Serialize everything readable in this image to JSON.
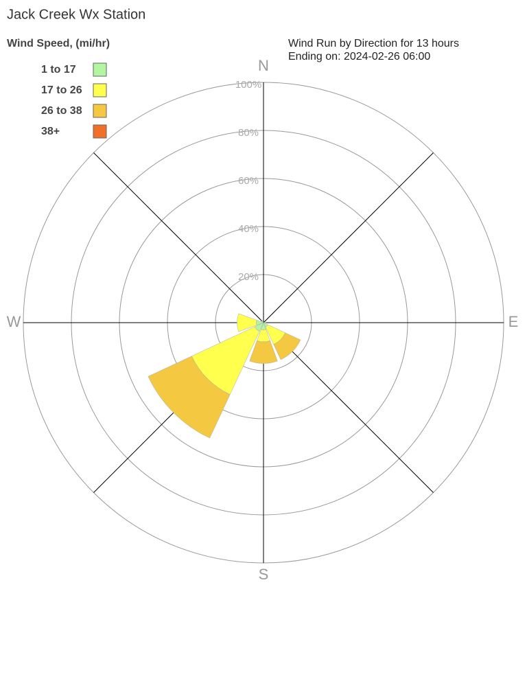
{
  "chart_data": {
    "type": "windrose",
    "title": "Jack Creek Wx Station",
    "legend_title": "Wind Speed, (mi/hr)",
    "subtitle": [
      "Wind Run by Direction for 13 hours",
      "Ending on: 2024-02-26 06:00"
    ],
    "compass_labels": [
      "N",
      "E",
      "S",
      "W"
    ],
    "x": [
      0,
      45,
      90,
      135,
      180,
      225,
      270,
      315
    ],
    "series": [
      {
        "name": "1 to 17",
        "color": "#b3f5a0",
        "values": [
          0,
          0,
          1,
          2,
          3,
          4,
          3,
          1
        ]
      },
      {
        "name": "17 to 26",
        "color": "#ffff4d",
        "values": [
          0,
          0,
          0,
          8,
          5,
          29,
          8,
          0
        ]
      },
      {
        "name": "26 to 38",
        "color": "#f5c842",
        "values": [
          0,
          0,
          0,
          7,
          9,
          20,
          0,
          0
        ]
      },
      {
        "name": "38+",
        "color": "#f0702a",
        "values": [
          0,
          0,
          0,
          0,
          0,
          0,
          0,
          0
        ]
      }
    ],
    "rlim": [
      0,
      100
    ],
    "rticks": [
      {
        "value": 20,
        "label": "20%"
      },
      {
        "value": 40,
        "label": "40%"
      },
      {
        "value": 60,
        "label": "60%"
      },
      {
        "value": 80,
        "label": "80%"
      },
      {
        "value": 100,
        "label": "100%"
      }
    ],
    "legend": "upper left"
  }
}
